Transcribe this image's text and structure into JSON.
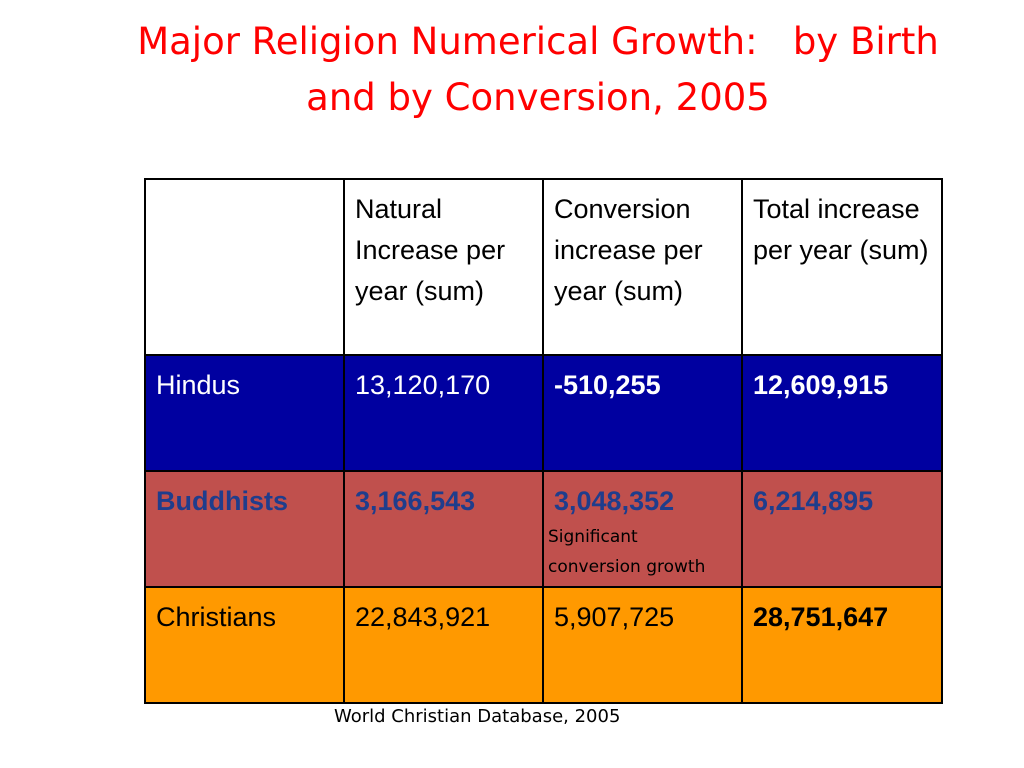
{
  "title": {
    "line1": "Major Religion Numerical Growth:   by Birth",
    "line2": "and by Conversion, 2005"
  },
  "table": {
    "headers": [
      "",
      "Natural Increase per year (sum)",
      "Conversion increase per year (sum)",
      "Total increase per year (sum)"
    ],
    "rows": [
      {
        "label": "Hindus",
        "natural": "13,120,170",
        "conversion": "-510,255",
        "total": "12,609,915"
      },
      {
        "label": "Buddhists",
        "natural": "3,166,543",
        "conversion": "3,048,352",
        "conversion_note_line1": "Significant",
        "conversion_note_line2": "conversion growth",
        "total": "6,214,895"
      },
      {
        "label": "Christians",
        "natural": "22,843,921",
        "conversion": "5,907,725",
        "total": "28,751,647"
      }
    ],
    "colors": {
      "hindus_bg": "#0000a0",
      "buddhists_bg": "#c0504d",
      "buddhists_text": "#1f3d8c",
      "christians_bg": "#ff9900"
    }
  },
  "source": "World Christian Database, 2005"
}
